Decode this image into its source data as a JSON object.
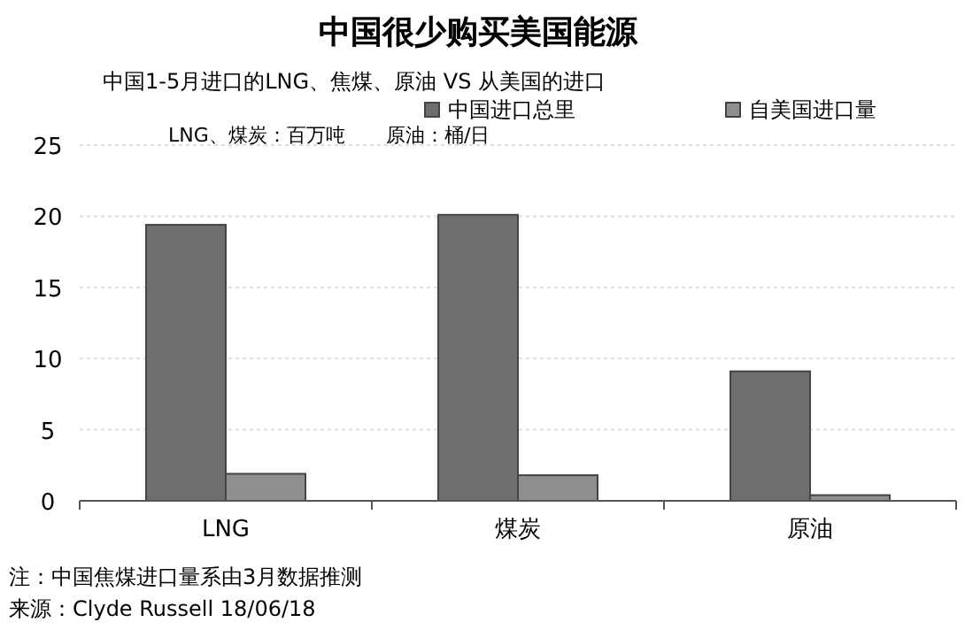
{
  "chart_data": {
    "type": "bar",
    "title": "中国很少购买美国能源",
    "subtitle": "中国1-5月进口的LNG、焦煤、原油 VS 从美国的进口",
    "categories": [
      "LNG",
      "煤炭",
      "原油"
    ],
    "series": [
      {
        "name": "中国进口总里",
        "color": "#6e6e6e",
        "values": [
          19.4,
          20.1,
          9.1
        ]
      },
      {
        "name": "自美国进口量",
        "color": "#8e8e8e",
        "values": [
          1.9,
          1.8,
          0.4
        ]
      }
    ],
    "ylim": [
      0,
      25
    ],
    "yticks": [
      0,
      5,
      10,
      15,
      20,
      25
    ],
    "grid": "y",
    "legend": "top right",
    "annotations": [
      "LNG、煤炭：百万吨",
      "原油：桶/日",
      "注：中国焦煤进口量系由3月数据推测",
      "来源：Clyde Russell 18/06/18"
    ]
  }
}
